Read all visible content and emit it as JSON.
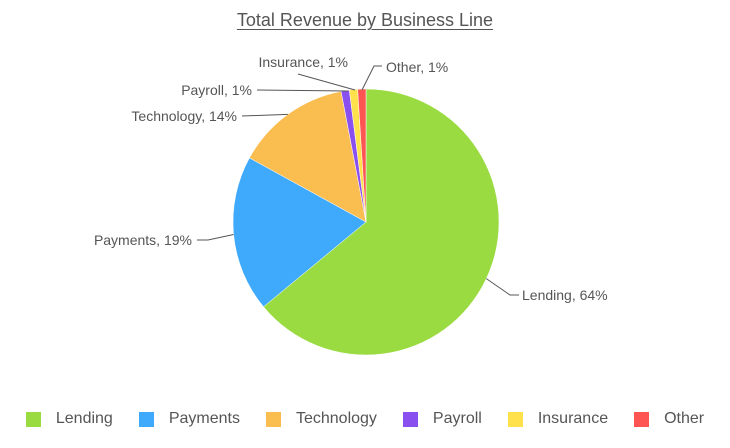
{
  "chart_data": {
    "type": "pie",
    "title": "Total Revenue by Business Line",
    "categories": [
      "Lending",
      "Payments",
      "Technology",
      "Payroll",
      "Insurance",
      "Other"
    ],
    "values": [
      64,
      19,
      14,
      1,
      1,
      1
    ],
    "unit": "%",
    "colors": [
      "#9ADB41",
      "#3FAAFB",
      "#FABD4F",
      "#8A4FEF",
      "#FFE14C",
      "#FE5552"
    ],
    "data_labels": [
      "Lending, 64%",
      "Payments, 19%",
      "Technology, 14%",
      "Payroll, 1%",
      "Insurance, 1%",
      "Other, 1%"
    ],
    "start_angle": "12 o'clock, clockwise",
    "legend_position": "bottom"
  },
  "title": "Total Revenue by Business Line",
  "legend": [
    {
      "label": "Lending",
      "color": "#9ADB41"
    },
    {
      "label": "Payments",
      "color": "#3FAAFB"
    },
    {
      "label": "Technology",
      "color": "#FABD4F"
    },
    {
      "label": "Payroll",
      "color": "#8A4FEF"
    },
    {
      "label": "Insurance",
      "color": "#FFE14C"
    },
    {
      "label": "Other",
      "color": "#FE5552"
    }
  ]
}
